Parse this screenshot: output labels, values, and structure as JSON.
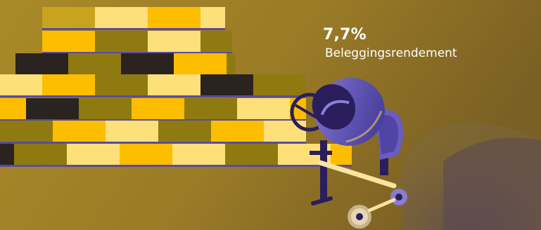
{
  "stat": {
    "value": "7,7%",
    "label": "Beleggingsrendement"
  },
  "colors": {
    "background_light": "#ab8a26",
    "background_dark": "#7a6024",
    "brick_yellow": "#fdbd00",
    "brick_light": "#fde07a",
    "brick_olive": "#8f7a12",
    "brick_dark": "#2a2320",
    "mortar": "#5b4a9e",
    "mixer_purple": "#5c4fb0",
    "mixer_dark": "#2b1e5c",
    "text": "#ffffff"
  },
  "illustration": {
    "bricks-icon": "brick-wall",
    "mixer-icon": "cement-mixer",
    "hills-icon": "sand-dunes"
  }
}
